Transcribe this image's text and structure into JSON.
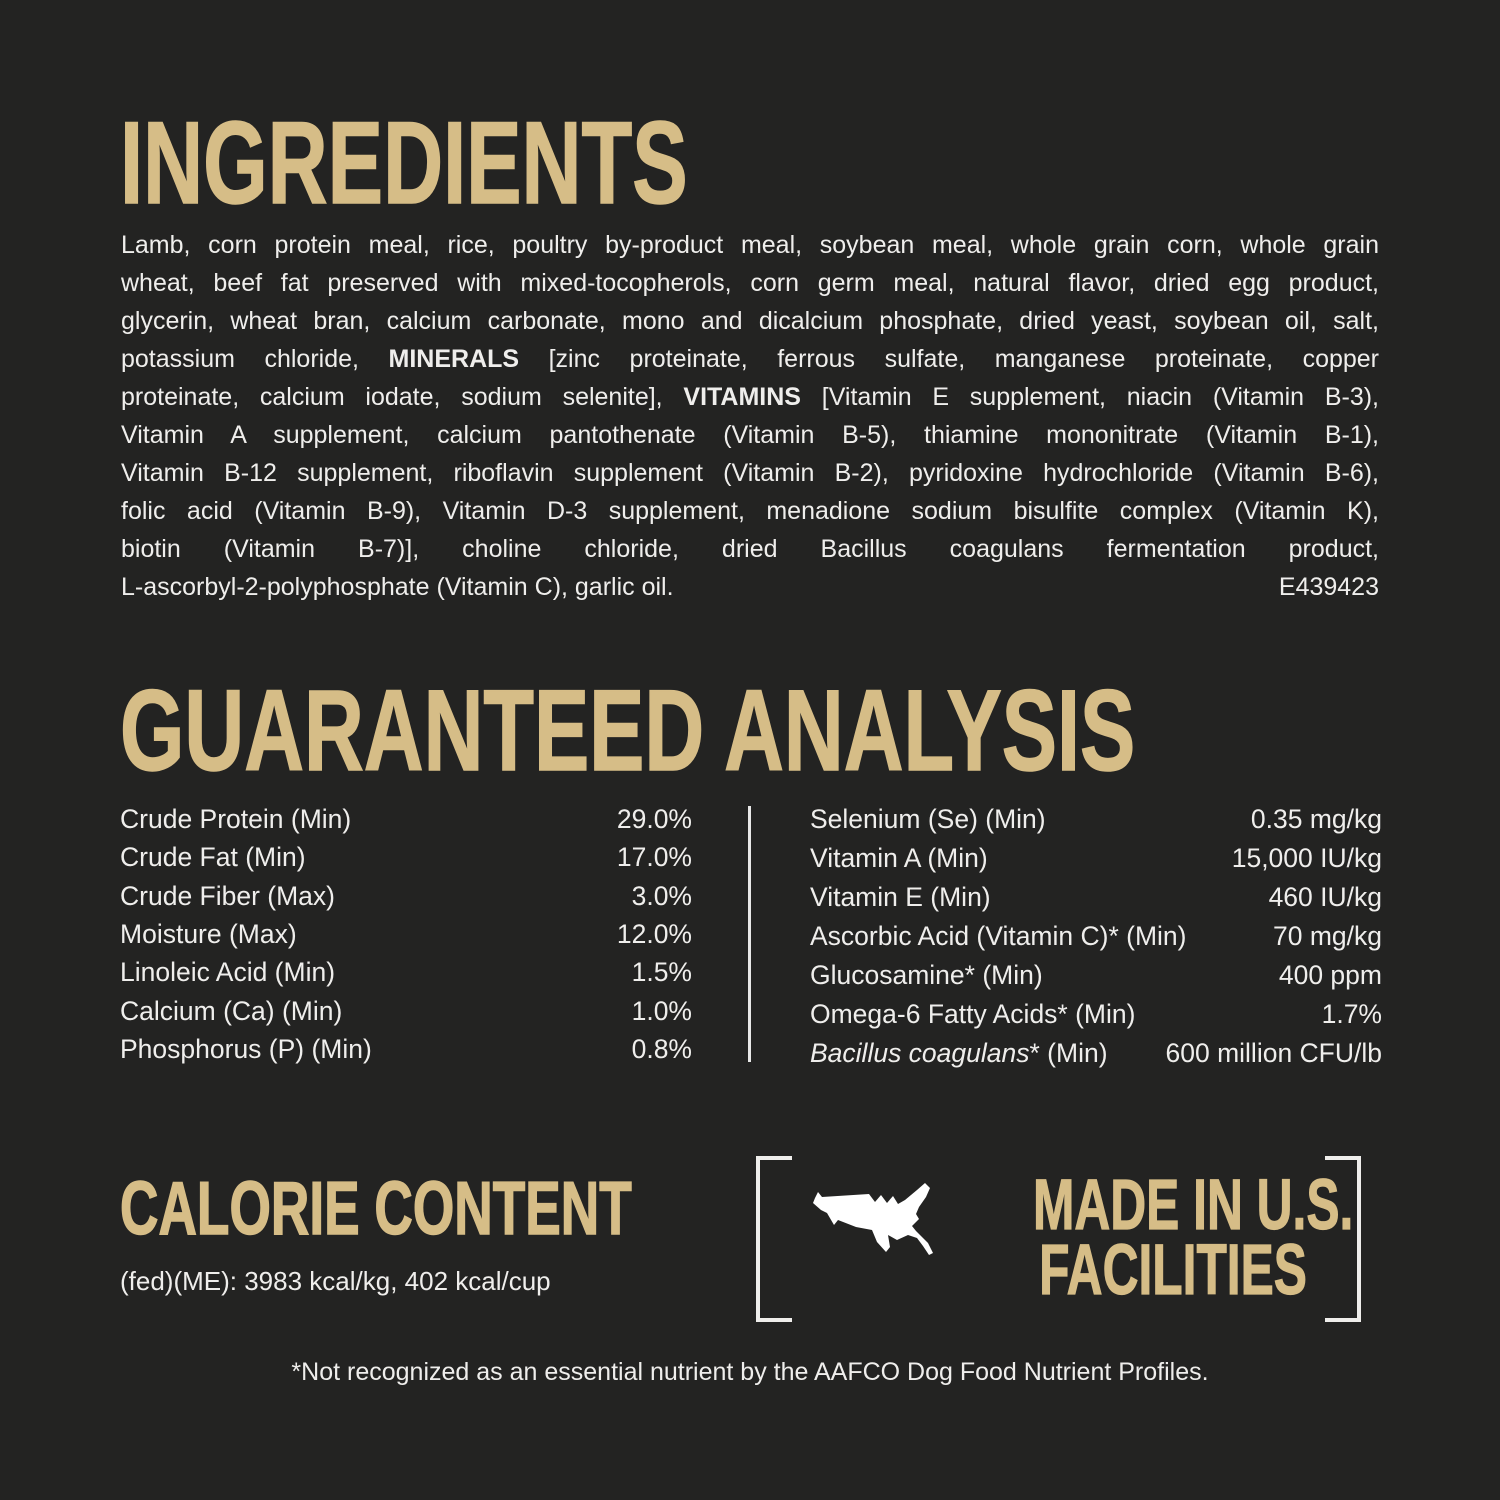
{
  "colors": {
    "bg": "#232322",
    "gold": "#d6bd87",
    "white": "#efeeec",
    "divider": "#e8e8e8"
  },
  "ingredients": {
    "heading": "INGREDIENTS",
    "lines": [
      [
        {
          "t": "Lamb, corn protein meal, rice, poultry by-product meal, soybean meal, whole grain corn, whole grain"
        }
      ],
      [
        {
          "t": "wheat, beef fat preserved with mixed-tocopherols, corn germ meal, natural flavor, dried egg product,"
        }
      ],
      [
        {
          "t": "glycerin, wheat bran, calcium carbonate, mono and dicalcium phosphate, dried yeast, soybean oil, salt,"
        }
      ],
      [
        {
          "t": "potassium chloride, "
        },
        {
          "t": "MINERALS",
          "b": true
        },
        {
          "t": " [zinc proteinate, ferrous sulfate, manganese proteinate, copper"
        }
      ],
      [
        {
          "t": "proteinate, calcium iodate, sodium selenite], "
        },
        {
          "t": "VITAMINS",
          "b": true
        },
        {
          "t": " [Vitamin E supplement, niacin (Vitamin B-3),"
        }
      ],
      [
        {
          "t": "Vitamin A supplement, calcium pantothenate (Vitamin B-5), thiamine mononitrate (Vitamin B-1),"
        }
      ],
      [
        {
          "t": "Vitamin B-12 supplement, riboflavin supplement (Vitamin B-2), pyridoxine hydrochloride (Vitamin B-6),"
        }
      ],
      [
        {
          "t": "folic acid (Vitamin B-9), Vitamin D-3 supplement, menadione sodium bisulfite complex (Vitamin K),"
        }
      ],
      [
        {
          "t": "biotin (Vitamin B-7)], choline chloride, dried Bacillus coagulans fermentation product,"
        }
      ]
    ],
    "last_line": "L-ascorbyl-2-polyphosphate (Vitamin C), garlic oil.",
    "code": "E439423"
  },
  "guaranteed_analysis": {
    "heading": "GUARANTEED ANALYSIS",
    "left_rows": [
      {
        "label": [
          {
            "t": "Crude Protein (Min)"
          }
        ],
        "value": "29.0%"
      },
      {
        "label": [
          {
            "t": "Crude Fat (Min)"
          }
        ],
        "value": "17.0%"
      },
      {
        "label": [
          {
            "t": "Crude Fiber (Max)"
          }
        ],
        "value": "3.0%"
      },
      {
        "label": [
          {
            "t": "Moisture (Max)"
          }
        ],
        "value": "12.0%"
      },
      {
        "label": [
          {
            "t": "Linoleic Acid (Min)"
          }
        ],
        "value": "1.5%"
      },
      {
        "label": [
          {
            "t": "Calcium (Ca) (Min)"
          }
        ],
        "value": "1.0%"
      },
      {
        "label": [
          {
            "t": "Phosphorus (P) (Min)"
          }
        ],
        "value": "0.8%"
      }
    ],
    "right_rows": [
      {
        "label": [
          {
            "t": "Selenium (Se) (Min)"
          }
        ],
        "value": "0.35 mg/kg"
      },
      {
        "label": [
          {
            "t": "Vitamin A (Min)"
          }
        ],
        "value": "15,000 IU/kg"
      },
      {
        "label": [
          {
            "t": "Vitamin E (Min)"
          }
        ],
        "value": "460 IU/kg"
      },
      {
        "label": [
          {
            "t": "Ascorbic Acid (Vitamin C)* (Min)"
          }
        ],
        "value": "70 mg/kg"
      },
      {
        "label": [
          {
            "t": "Glucosamine* (Min)"
          }
        ],
        "value": "400 ppm"
      },
      {
        "label": [
          {
            "t": "Omega-6 Fatty Acids* (Min)"
          }
        ],
        "value": "1.7%"
      },
      {
        "label": [
          {
            "t": "Bacillus coagulans",
            "i": true
          },
          {
            "t": "* (Min)"
          }
        ],
        "value": "600 million CFU/lb"
      }
    ]
  },
  "calorie_content": {
    "heading": "CALORIE CONTENT",
    "value_line": "(fed)(ME): 3983 kcal/kg, 402 kcal/cup"
  },
  "made_in_us": {
    "line1": "MADE IN U.S.",
    "line2": "FACILITIES",
    "icon": "usa-map-silhouette"
  },
  "footnote": "*Not recognized as an essential nutrient by the AAFCO Dog Food Nutrient Profiles."
}
